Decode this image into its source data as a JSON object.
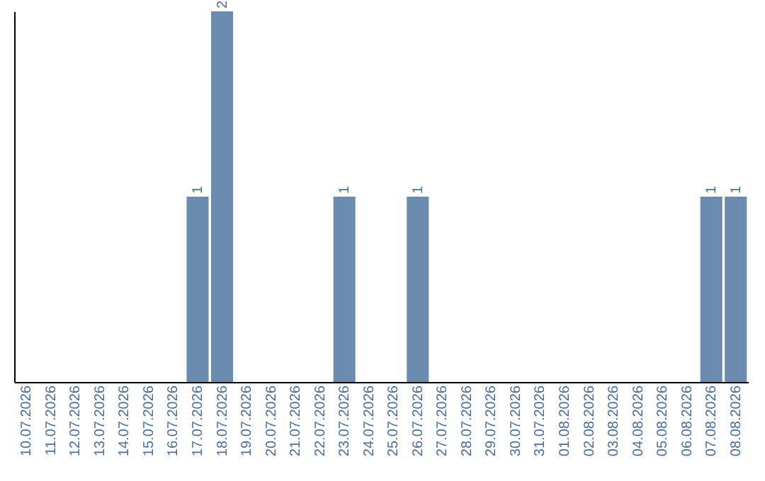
{
  "chart_data": {
    "type": "bar",
    "categories": [
      "10.07.2026",
      "11.07.2026",
      "12.07.2026",
      "13.07.2026",
      "14.07.2026",
      "15.07.2026",
      "16.07.2026",
      "17.07.2026",
      "18.07.2026",
      "19.07.2026",
      "20.07.2026",
      "21.07.2026",
      "22.07.2026",
      "23.07.2026",
      "24.07.2026",
      "25.07.2026",
      "26.07.2026",
      "27.07.2026",
      "28.07.2026",
      "29.07.2026",
      "30.07.2026",
      "31.07.2026",
      "01.08.2026",
      "02.08.2026",
      "03.08.2026",
      "04.08.2026",
      "05.08.2026",
      "06.08.2026",
      "07.08.2026",
      "08.08.2026"
    ],
    "values": [
      0,
      0,
      0,
      0,
      0,
      0,
      0,
      1,
      2,
      0,
      0,
      0,
      0,
      1,
      0,
      0,
      1,
      0,
      0,
      0,
      0,
      0,
      0,
      0,
      0,
      0,
      0,
      0,
      1,
      1
    ],
    "value_labels": [
      null,
      null,
      null,
      null,
      null,
      null,
      null,
      "1",
      "2",
      null,
      null,
      null,
      null,
      "1",
      null,
      null,
      "1",
      null,
      null,
      null,
      null,
      null,
      null,
      null,
      null,
      null,
      null,
      null,
      "1",
      "1"
    ],
    "color": "#6b8caf",
    "ylim": [
      0,
      2
    ],
    "tick_labels": "x",
    "grid": false
  }
}
